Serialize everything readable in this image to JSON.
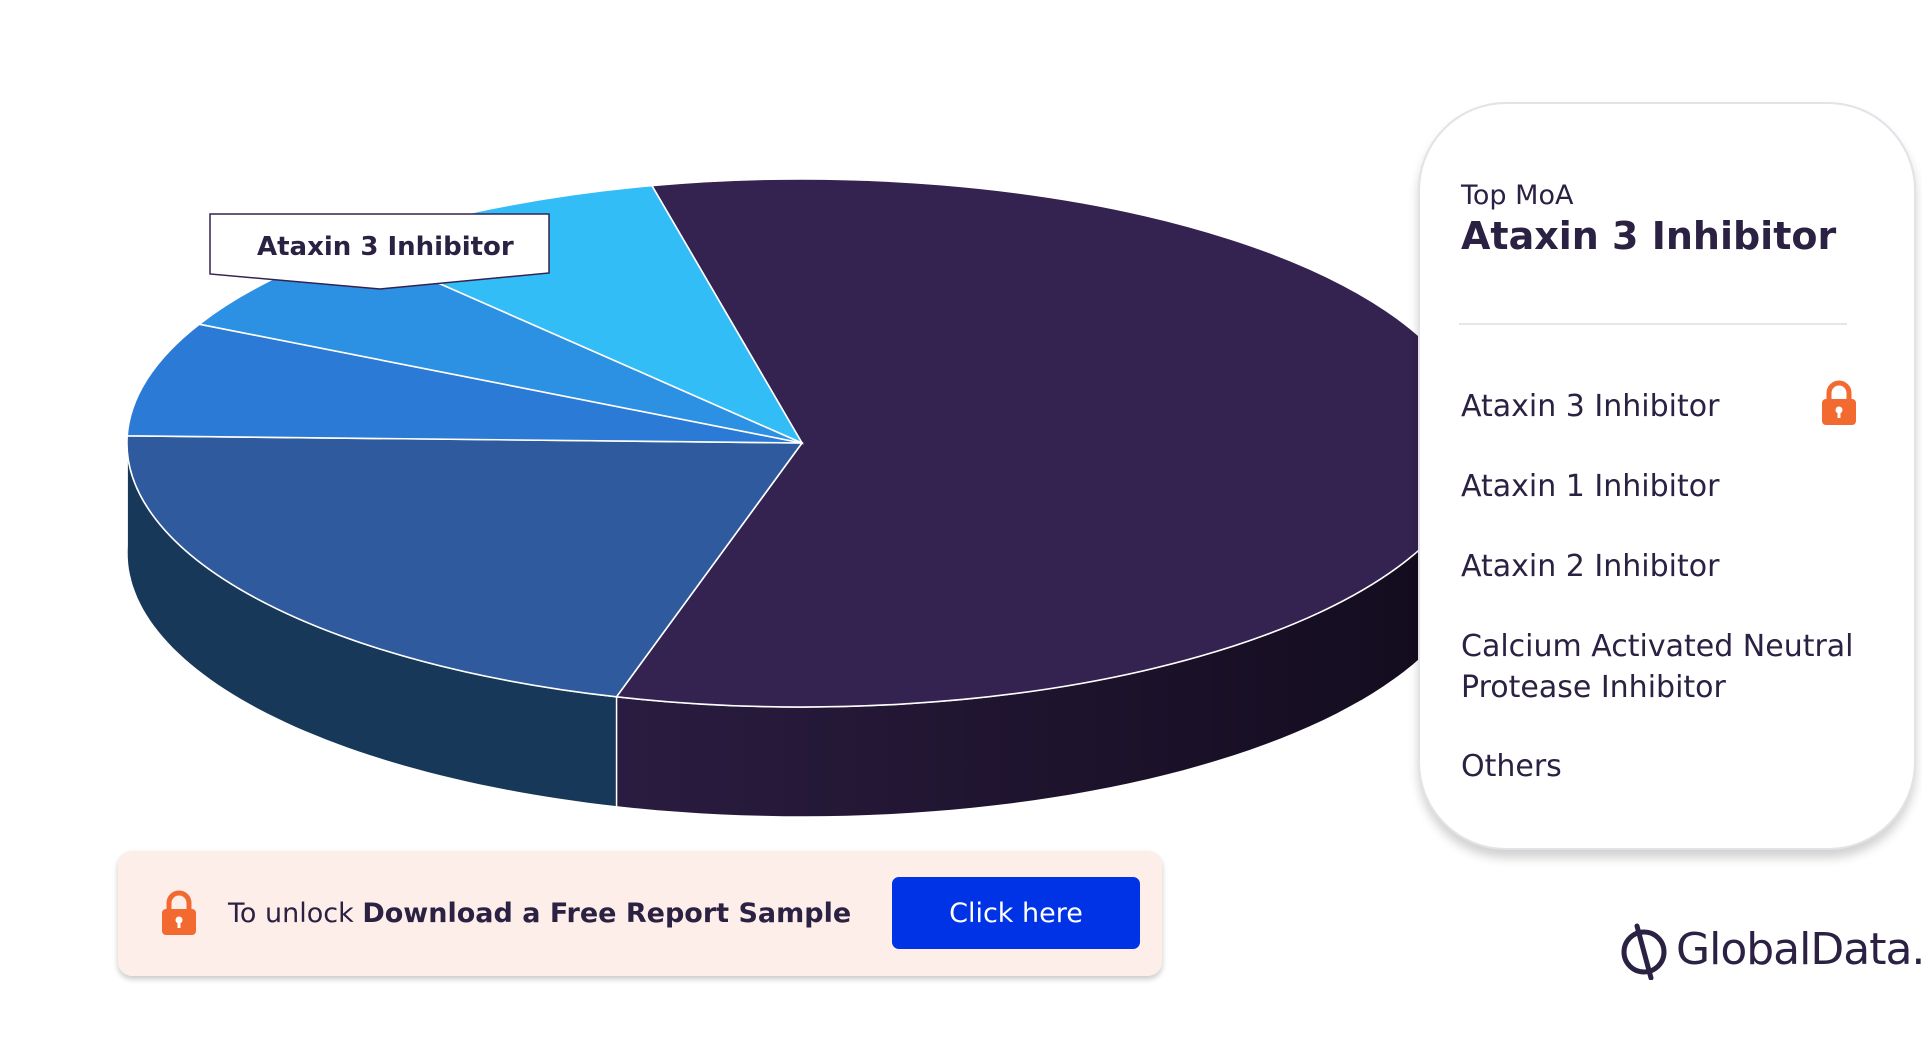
{
  "chart_data": {
    "type": "pie",
    "style": "3d",
    "categories": [
      "Ataxin 3 Inhibitor",
      "Ataxin 1 Inhibitor",
      "Ataxin 2 Inhibitor",
      "Calcium Activated Neutral Protease Inhibitor",
      "Others"
    ],
    "values": [
      58,
      21,
      7,
      6,
      8
    ],
    "colors": [
      "#342250",
      "#2f5b9e",
      "#2b7bd6",
      "#2c90e3",
      "#32bdf7"
    ],
    "side_colors": [
      "#221634",
      "#173858",
      "#1a3f66",
      "#163a5c",
      "#134a64"
    ],
    "callout": "Ataxin 3 Inhibitor"
  },
  "legend": {
    "kicker": "Top MoA",
    "title": "Ataxin 3 Inhibitor",
    "items": [
      "Ataxin 3 Inhibitor",
      "Ataxin 1 Inhibitor",
      "Ataxin 2 Inhibitor",
      "Calcium Activated Neutral Protease Inhibitor",
      "Others"
    ],
    "locked_icon": "lock-icon"
  },
  "unlock_bar": {
    "prefix": "To unlock ",
    "bold": "Download a Free Report Sample",
    "button_label": "Click here",
    "icon": "lock-icon",
    "accent": "#f26a30",
    "button_color": "#0032e6"
  },
  "brand": {
    "name": "GlobalData.",
    "icon": "globaldata-logo-icon"
  }
}
